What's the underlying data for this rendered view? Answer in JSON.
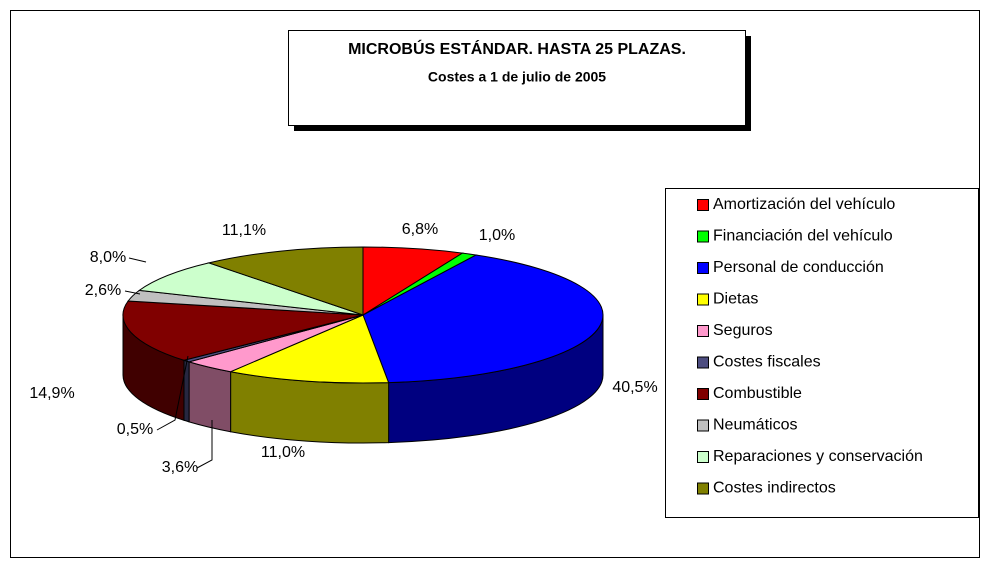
{
  "chart_data": {
    "type": "pie",
    "title": "MICROBÚS ESTÁNDAR. HASTA 25 PLAZAS.",
    "subtitle": "Costes a 1 de julio de 2005",
    "categories": [
      "Amortización del vehículo",
      "Financiación del vehículo",
      "Personal de conducción",
      "Dietas",
      "Seguros",
      "Costes fiscales",
      "Combustible",
      "Neumáticos",
      "Reparaciones y conservación",
      "Costes indirectos"
    ],
    "values": [
      6.8,
      1.0,
      40.5,
      11.0,
      3.6,
      0.5,
      14.9,
      2.6,
      8.0,
      11.1
    ],
    "value_labels": [
      "6,8%",
      "1,0%",
      "40,5%",
      "11,0%",
      "3,6%",
      "0,5%",
      "14,9%",
      "2,6%",
      "8,0%",
      "11,1%"
    ],
    "colors": [
      "#ff0000",
      "#00ff00",
      "#0000ff",
      "#ffff00",
      "#ff99cc",
      "#4d4d80",
      "#800000",
      "#c0c0c0",
      "#ccffcc",
      "#808000"
    ],
    "legend": "right"
  }
}
